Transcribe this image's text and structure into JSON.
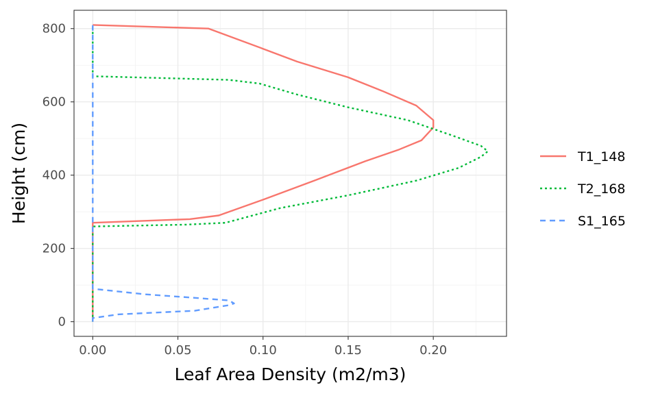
{
  "chart_data": {
    "type": "line",
    "title": "",
    "xlabel": "Leaf Area Density (m2/m3)",
    "ylabel": "Height (cm)",
    "xlim": [
      -0.011,
      0.243
    ],
    "ylim": [
      -40,
      850
    ],
    "x_ticks": [
      "0.00",
      "0.05",
      "0.10",
      "0.15",
      "0.20"
    ],
    "x_tick_values": [
      0,
      0.05,
      0.1,
      0.15,
      0.2
    ],
    "y_ticks": [
      "0",
      "200",
      "400",
      "600",
      "800"
    ],
    "y_tick_values": [
      0,
      200,
      400,
      600,
      800
    ],
    "grid": true,
    "legend_position": "right",
    "series": [
      {
        "name": "T1_148",
        "color": "#F8766D",
        "dash": "solid",
        "points": [
          [
            0,
            0
          ],
          [
            0,
            270
          ],
          [
            0.057,
            280
          ],
          [
            0.074,
            290
          ],
          [
            0.1,
            333
          ],
          [
            0.13,
            385
          ],
          [
            0.16,
            438
          ],
          [
            0.18,
            470
          ],
          [
            0.193,
            495
          ],
          [
            0.2,
            530
          ],
          [
            0.2,
            550
          ],
          [
            0.19,
            590
          ],
          [
            0.17,
            630
          ],
          [
            0.15,
            667
          ],
          [
            0.12,
            710
          ],
          [
            0.1,
            745
          ],
          [
            0.068,
            800
          ],
          [
            0,
            810
          ]
        ]
      },
      {
        "name": "T2_168",
        "color": "#00BA38",
        "dash": "dotted",
        "points": [
          [
            0,
            0
          ],
          [
            0,
            260
          ],
          [
            0.055,
            265
          ],
          [
            0.078,
            270
          ],
          [
            0.11,
            310
          ],
          [
            0.15,
            345
          ],
          [
            0.19,
            385
          ],
          [
            0.215,
            420
          ],
          [
            0.228,
            450
          ],
          [
            0.232,
            465
          ],
          [
            0.228,
            480
          ],
          [
            0.21,
            510
          ],
          [
            0.185,
            550
          ],
          [
            0.15,
            585
          ],
          [
            0.12,
            620
          ],
          [
            0.098,
            650
          ],
          [
            0.08,
            660
          ],
          [
            0.04,
            665
          ],
          [
            0,
            670
          ],
          [
            0,
            810
          ]
        ]
      },
      {
        "name": "S1_165",
        "color": "#619CFF",
        "dash": "dashed",
        "points": [
          [
            0,
            0
          ],
          [
            0,
            10
          ],
          [
            0.015,
            20
          ],
          [
            0.06,
            30
          ],
          [
            0.08,
            45
          ],
          [
            0.083,
            50
          ],
          [
            0.08,
            58
          ],
          [
            0.06,
            65
          ],
          [
            0.03,
            75
          ],
          [
            0,
            90
          ],
          [
            0,
            810
          ]
        ]
      }
    ]
  }
}
